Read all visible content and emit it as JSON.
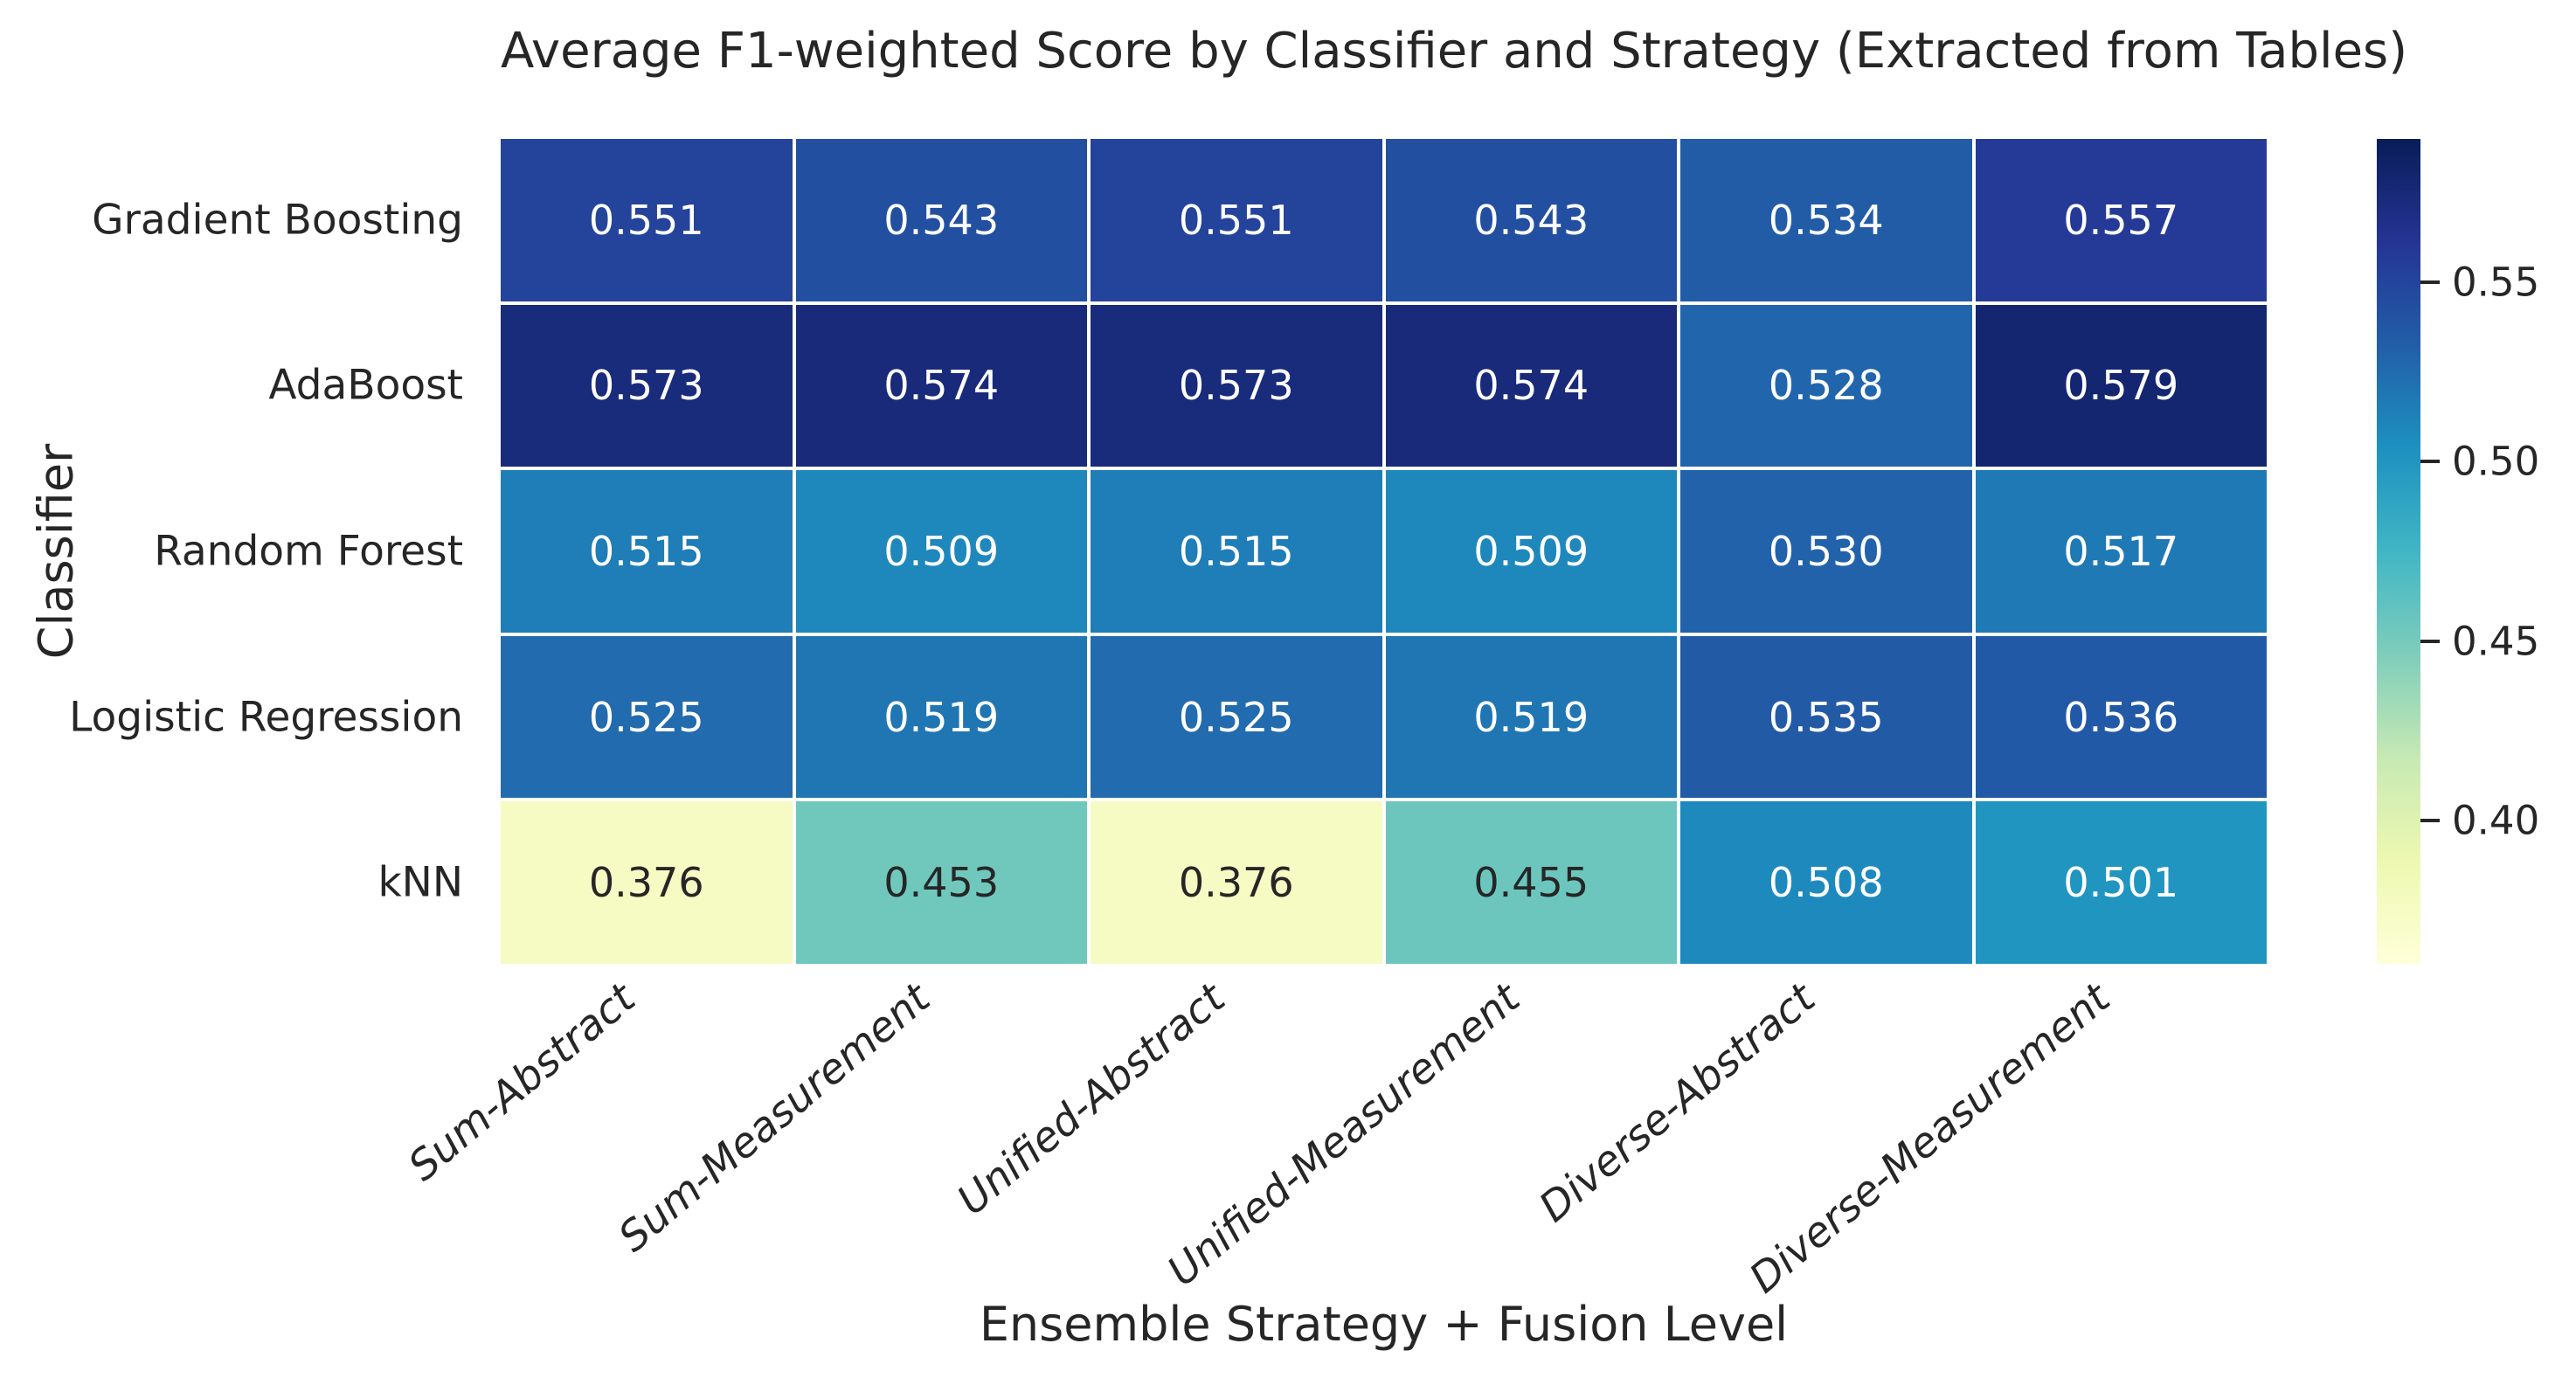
{
  "chart_data": {
    "type": "heatmap",
    "title": "Average F1-weighted Score by Classifier and Strategy (Extracted from Tables)",
    "xlabel": "Ensemble Strategy + Fusion Level",
    "ylabel": "Classifier",
    "x_categories": [
      "Sum-Abstract",
      "Sum-Measurement",
      "Unified-Abstract",
      "Unified-Measurement",
      "Diverse-Abstract",
      "Diverse-Measurement"
    ],
    "y_categories": [
      "Gradient Boosting",
      "AdaBoost",
      "Random Forest",
      "Logistic Regression",
      "kNN"
    ],
    "values": [
      [
        0.551,
        0.543,
        0.551,
        0.543,
        0.534,
        0.557
      ],
      [
        0.573,
        0.574,
        0.573,
        0.574,
        0.528,
        0.579
      ],
      [
        0.515,
        0.509,
        0.515,
        0.509,
        0.53,
        0.517
      ],
      [
        0.525,
        0.519,
        0.525,
        0.519,
        0.535,
        0.536
      ],
      [
        0.376,
        0.453,
        0.376,
        0.455,
        0.508,
        0.501
      ]
    ],
    "vmin": 0.36,
    "vmax": 0.59,
    "colorbar": {
      "position": "right",
      "tick_values": [
        0.55,
        0.5,
        0.45,
        0.4
      ],
      "tick_labels": [
        "0.55",
        "0.50",
        "0.45",
        "0.40"
      ]
    },
    "colormap": {
      "name": "YlGnBu",
      "stops": [
        {
          "pos": 0.0,
          "color": "#ffffd9"
        },
        {
          "pos": 0.125,
          "color": "#edf8b1"
        },
        {
          "pos": 0.25,
          "color": "#c7e9b4"
        },
        {
          "pos": 0.375,
          "color": "#7fcdbb"
        },
        {
          "pos": 0.5,
          "color": "#41b6c4"
        },
        {
          "pos": 0.625,
          "color": "#1d91c0"
        },
        {
          "pos": 0.75,
          "color": "#225ea8"
        },
        {
          "pos": 0.875,
          "color": "#253494"
        },
        {
          "pos": 1.0,
          "color": "#081d58"
        }
      ]
    },
    "annotation_text_colors": {
      "dark": "#262626",
      "light": "#ffffff"
    },
    "grid_line_color": "#ffffff",
    "background_color": "#ffffff"
  }
}
